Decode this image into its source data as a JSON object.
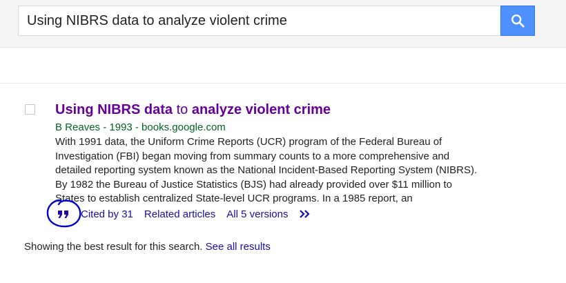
{
  "search": {
    "query": "Using NIBRS data to analyze violent crime",
    "button_icon": "search-icon",
    "button_color": "#4d90fe"
  },
  "result": {
    "title_part1": "Using NIBRS data",
    "title_part2": " to ",
    "title_part3": "analyze violent crime",
    "meta": "B Reaves - 1993 - books.google.com",
    "snippet_lines": [
      "With 1991 data, the Uniform Crime Reports (UCR) program of the Federal Bureau of",
      "Investigation (FBI) began moving from summary counts to a more comprehensive and",
      "detailed reporting system known as the National Incident-Based Reporting System (NIBRS).",
      "By 1982 the Bureau of Justice Statistics (BJS) had already provided over $11 million to",
      "States to establish centralized State-level UCR programs. In a 1985 report, an"
    ],
    "links": {
      "cite_icon": "quote-icon",
      "cited_by": "Cited by 31",
      "related": "Related articles",
      "versions": "All 5 versions",
      "more_icon": "double-chevron-right-icon"
    },
    "title_color": "#660099",
    "meta_color": "#006621",
    "link_color": "#1a0dab"
  },
  "annotation": {
    "icon": "hand-drawn-circle-annotation",
    "color": "#0000cc"
  },
  "footer": {
    "text": "Showing the best result for this search.",
    "see_all": "See all results"
  }
}
